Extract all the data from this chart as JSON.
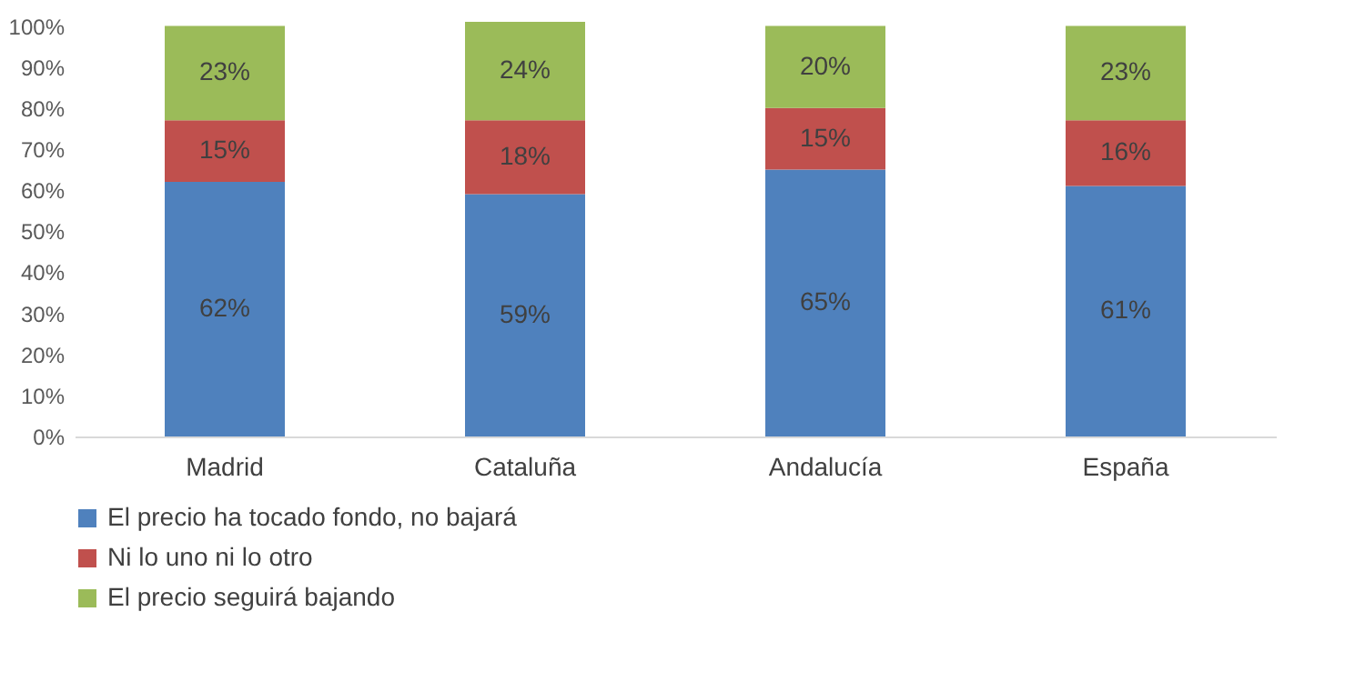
{
  "chart_data": {
    "type": "bar",
    "stacked": true,
    "categories": [
      "Madrid",
      "Cataluña",
      "Andalucía",
      "España"
    ],
    "series": [
      {
        "name": "El precio ha tocado fondo, no bajará",
        "color": "#4f81bd",
        "values": [
          62,
          59,
          65,
          61
        ],
        "value_labels": [
          "62%",
          "59%",
          "65%",
          "61%"
        ]
      },
      {
        "name": "Ni lo uno ni lo otro",
        "color": "#c0504d",
        "values": [
          15,
          18,
          15,
          16
        ],
        "value_labels": [
          "15%",
          "18%",
          "15%",
          "16%"
        ]
      },
      {
        "name": "El precio seguirá bajando",
        "color": "#9bbb59",
        "values": [
          23,
          24,
          20,
          23
        ],
        "value_labels": [
          "23%",
          "24%",
          "20%",
          "23%"
        ]
      }
    ],
    "ylim": [
      0,
      101
    ],
    "yticks": [
      {
        "value": 0,
        "label": "0%"
      },
      {
        "value": 10,
        "label": "10%"
      },
      {
        "value": 20,
        "label": "20%"
      },
      {
        "value": 30,
        "label": "30%"
      },
      {
        "value": 40,
        "label": "40%"
      },
      {
        "value": 50,
        "label": "50%"
      },
      {
        "value": 60,
        "label": "60%"
      },
      {
        "value": 70,
        "label": "70%"
      },
      {
        "value": 80,
        "label": "80%"
      },
      {
        "value": 90,
        "label": "90%"
      },
      {
        "value": 100,
        "label": "100%"
      }
    ],
    "grid": false,
    "legend": "bottom"
  }
}
